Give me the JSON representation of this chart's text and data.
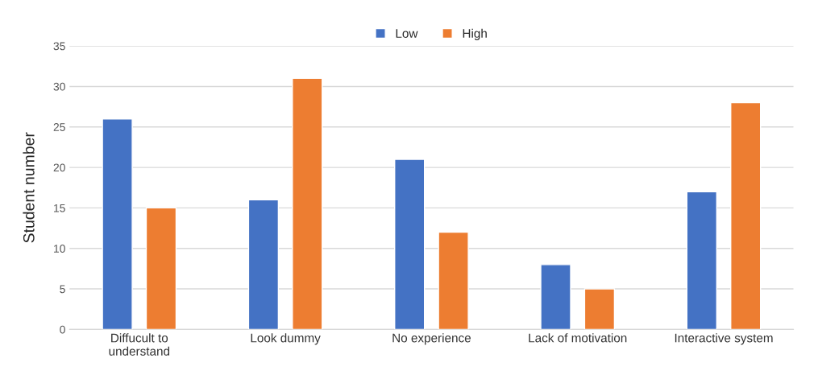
{
  "chart_data": {
    "type": "bar",
    "ylabel": "Student number",
    "categories": [
      "Diffucult to\nunderstand",
      "Look dummy",
      "No experience",
      "Lack of motivation",
      "Interactive system"
    ],
    "series": [
      {
        "name": "Low",
        "color": "#4472c4",
        "values": [
          26,
          16,
          21,
          8,
          17
        ]
      },
      {
        "name": "High",
        "color": "#ed7d31",
        "values": [
          15,
          31,
          12,
          5,
          28
        ]
      }
    ],
    "ylim": [
      0,
      35
    ],
    "yticks": [
      0,
      5,
      10,
      15,
      20,
      25,
      30,
      35
    ],
    "grid": "y",
    "legend": "top"
  }
}
